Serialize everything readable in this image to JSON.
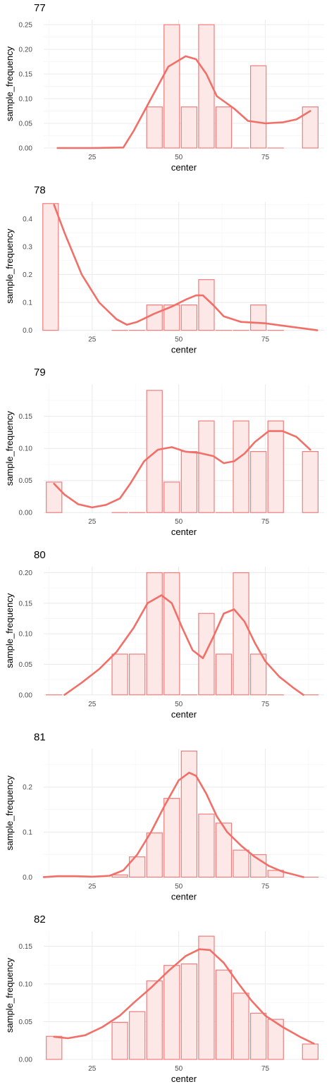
{
  "style": {
    "bar_fill": "#fde8e8",
    "bar_stroke": "#f27c7c",
    "line_color": "#f26f68",
    "grid_major": "#ebebeb",
    "grid_minor": "#f5f5f5",
    "text_color": "#4d4d4d"
  },
  "chart_data": [
    {
      "type": "bar",
      "title": "77",
      "xlabel": "center",
      "ylabel": "sample_frequency",
      "xlim": [
        11,
        92
      ],
      "ylim": [
        0,
        0.26
      ],
      "xticks": [
        "25",
        "50",
        "75"
      ],
      "yticks": [
        "0.00",
        "0.05",
        "0.10",
        "0.15",
        "0.20",
        "0.25"
      ],
      "grid": true,
      "bars": [
        {
          "x": 43,
          "value": 0.0833
        },
        {
          "x": 48,
          "value": 0.25
        },
        {
          "x": 53,
          "value": 0.0833
        },
        {
          "x": 58,
          "value": 0.25
        },
        {
          "x": 63,
          "value": 0.0833
        },
        {
          "x": 68,
          "value": 0
        },
        {
          "x": 73,
          "value": 0.1667
        },
        {
          "x": 78,
          "value": 0
        },
        {
          "x": 88,
          "value": 0.0833
        }
      ],
      "density": [
        [
          15,
          0
        ],
        [
          25,
          0
        ],
        [
          34,
          0.001
        ],
        [
          37,
          0.035
        ],
        [
          42,
          0.1
        ],
        [
          47,
          0.165
        ],
        [
          52,
          0.186
        ],
        [
          55,
          0.18
        ],
        [
          58,
          0.15
        ],
        [
          61,
          0.105
        ],
        [
          66,
          0.08
        ],
        [
          70,
          0.055
        ],
        [
          75,
          0.05
        ],
        [
          80,
          0.052
        ],
        [
          84,
          0.058
        ],
        [
          88,
          0.075
        ]
      ]
    },
    {
      "type": "bar",
      "title": "78",
      "xlabel": "center",
      "ylabel": "sample_frequency",
      "xlim": [
        11,
        92
      ],
      "ylim": [
        0,
        0.46
      ],
      "xticks": [
        "25",
        "50",
        "75"
      ],
      "yticks": [
        "0.0",
        "0.1",
        "0.2",
        "0.3",
        "0.4"
      ],
      "grid": true,
      "bars": [
        {
          "x": 13,
          "value": 0.4545
        },
        {
          "x": 33,
          "value": 0
        },
        {
          "x": 38,
          "value": 0
        },
        {
          "x": 43,
          "value": 0.0909
        },
        {
          "x": 48,
          "value": 0.0909
        },
        {
          "x": 53,
          "value": 0.0909
        },
        {
          "x": 58,
          "value": 0.1818
        },
        {
          "x": 63,
          "value": 0
        },
        {
          "x": 68,
          "value": 0
        },
        {
          "x": 73,
          "value": 0.0909
        },
        {
          "x": 78,
          "value": 0
        }
      ],
      "density": [
        [
          14,
          0.45
        ],
        [
          17,
          0.35
        ],
        [
          22,
          0.2
        ],
        [
          27,
          0.1
        ],
        [
          32,
          0.04
        ],
        [
          35,
          0.02
        ],
        [
          38,
          0.03
        ],
        [
          43,
          0.06
        ],
        [
          48,
          0.085
        ],
        [
          52,
          0.11
        ],
        [
          55,
          0.125
        ],
        [
          57,
          0.125
        ],
        [
          60,
          0.09
        ],
        [
          63,
          0.05
        ],
        [
          68,
          0.03
        ],
        [
          75,
          0.025
        ],
        [
          81,
          0.015
        ],
        [
          87,
          0.005
        ],
        [
          90,
          0.0
        ]
      ]
    },
    {
      "type": "bar",
      "title": "79",
      "xlabel": "center",
      "ylabel": "sample_frequency",
      "xlim": [
        11,
        92
      ],
      "ylim": [
        0,
        0.2
      ],
      "xticks": [
        "25",
        "50",
        "75"
      ],
      "yticks": [
        "0.00",
        "0.05",
        "0.10",
        "0.15"
      ],
      "grid": true,
      "bars": [
        {
          "x": 14,
          "value": 0.0476
        },
        {
          "x": 33,
          "value": 0
        },
        {
          "x": 38,
          "value": 0
        },
        {
          "x": 43,
          "value": 0.1905
        },
        {
          "x": 48,
          "value": 0.0476
        },
        {
          "x": 53,
          "value": 0.0952
        },
        {
          "x": 58,
          "value": 0.1429
        },
        {
          "x": 63,
          "value": 0
        },
        {
          "x": 68,
          "value": 0.1429
        },
        {
          "x": 73,
          "value": 0.0952
        },
        {
          "x": 78,
          "value": 0.1429
        },
        {
          "x": 88,
          "value": 0.0952
        }
      ],
      "density": [
        [
          14,
          0.045
        ],
        [
          17,
          0.028
        ],
        [
          21,
          0.013
        ],
        [
          25,
          0.008
        ],
        [
          29,
          0.012
        ],
        [
          33,
          0.022
        ],
        [
          36,
          0.045
        ],
        [
          40,
          0.08
        ],
        [
          44,
          0.098
        ],
        [
          48,
          0.102
        ],
        [
          52,
          0.095
        ],
        [
          56,
          0.093
        ],
        [
          60,
          0.088
        ],
        [
          63,
          0.077
        ],
        [
          66,
          0.08
        ],
        [
          69,
          0.092
        ],
        [
          72,
          0.11
        ],
        [
          76,
          0.127
        ],
        [
          80,
          0.127
        ],
        [
          84,
          0.118
        ],
        [
          88,
          0.098
        ]
      ]
    },
    {
      "type": "bar",
      "title": "80",
      "xlabel": "center",
      "ylabel": "sample_frequency",
      "xlim": [
        11,
        92
      ],
      "ylim": [
        0,
        0.21
      ],
      "xticks": [
        "25",
        "50",
        "75"
      ],
      "yticks": [
        "0.00",
        "0.05",
        "0.10",
        "0.15",
        "0.20"
      ],
      "grid": true,
      "bars": [
        {
          "x": 14,
          "value": 0
        },
        {
          "x": 33,
          "value": 0.0667
        },
        {
          "x": 38,
          "value": 0.0667
        },
        {
          "x": 43,
          "value": 0.2
        },
        {
          "x": 48,
          "value": 0.2
        },
        {
          "x": 53,
          "value": 0
        },
        {
          "x": 58,
          "value": 0.1333
        },
        {
          "x": 63,
          "value": 0.0667
        },
        {
          "x": 68,
          "value": 0.2
        },
        {
          "x": 73,
          "value": 0.0667
        },
        {
          "x": 78,
          "value": 0
        },
        {
          "x": 88,
          "value": 0
        }
      ],
      "density": [
        [
          17,
          0.0
        ],
        [
          22,
          0.02
        ],
        [
          27,
          0.042
        ],
        [
          32,
          0.07
        ],
        [
          37,
          0.11
        ],
        [
          41,
          0.15
        ],
        [
          45,
          0.163
        ],
        [
          48,
          0.15
        ],
        [
          51,
          0.11
        ],
        [
          54,
          0.073
        ],
        [
          57,
          0.06
        ],
        [
          60,
          0.095
        ],
        [
          63,
          0.133
        ],
        [
          66,
          0.14
        ],
        [
          69,
          0.12
        ],
        [
          72,
          0.085
        ],
        [
          75,
          0.055
        ],
        [
          79,
          0.03
        ],
        [
          83,
          0.012
        ],
        [
          86,
          0.0
        ]
      ]
    },
    {
      "type": "bar",
      "title": "81",
      "xlabel": "center",
      "ylabel": "sample_frequency",
      "xlim": [
        11,
        92
      ],
      "ylim": [
        0,
        0.285
      ],
      "xticks": [
        "25",
        "50",
        "75"
      ],
      "yticks": [
        "0.0",
        "0.1",
        "0.2"
      ],
      "grid": true,
      "bars": [
        {
          "x": 33,
          "value": 0.005
        },
        {
          "x": 38,
          "value": 0.045
        },
        {
          "x": 43,
          "value": 0.098
        },
        {
          "x": 48,
          "value": 0.175
        },
        {
          "x": 53,
          "value": 0.28
        },
        {
          "x": 58,
          "value": 0.14
        },
        {
          "x": 63,
          "value": 0.12
        },
        {
          "x": 68,
          "value": 0.06
        },
        {
          "x": 73,
          "value": 0.05
        },
        {
          "x": 78,
          "value": 0.015
        },
        {
          "x": 88,
          "value": 0
        }
      ],
      "density": [
        [
          11,
          0.0
        ],
        [
          15,
          0.002
        ],
        [
          20,
          0.002
        ],
        [
          25,
          0.001
        ],
        [
          30,
          0.003
        ],
        [
          34,
          0.015
        ],
        [
          38,
          0.05
        ],
        [
          42,
          0.1
        ],
        [
          46,
          0.16
        ],
        [
          50,
          0.215
        ],
        [
          53,
          0.232
        ],
        [
          55,
          0.225
        ],
        [
          58,
          0.185
        ],
        [
          61,
          0.135
        ],
        [
          64,
          0.1
        ],
        [
          68,
          0.07
        ],
        [
          72,
          0.045
        ],
        [
          76,
          0.025
        ],
        [
          80,
          0.012
        ],
        [
          84,
          0.004
        ],
        [
          86,
          0.0
        ]
      ]
    },
    {
      "type": "bar",
      "title": "82",
      "xlabel": "center",
      "ylabel": "sample_frequency",
      "xlim": [
        11,
        92
      ],
      "ylim": [
        0,
        0.17
      ],
      "xticks": [
        "25",
        "50",
        "75"
      ],
      "yticks": [
        "0.00",
        "0.05",
        "0.10",
        "0.15"
      ],
      "grid": true,
      "bars": [
        {
          "x": 14,
          "value": 0.0306
        },
        {
          "x": 33,
          "value": 0.049
        },
        {
          "x": 38,
          "value": 0.0633
        },
        {
          "x": 43,
          "value": 0.104
        },
        {
          "x": 48,
          "value": 0.1245
        },
        {
          "x": 53,
          "value": 0.1265
        },
        {
          "x": 58,
          "value": 0.1633
        },
        {
          "x": 63,
          "value": 0.1184
        },
        {
          "x": 68,
          "value": 0.0878
        },
        {
          "x": 73,
          "value": 0.0612
        },
        {
          "x": 78,
          "value": 0.0531
        },
        {
          "x": 88,
          "value": 0.0204
        }
      ],
      "density": [
        [
          14,
          0.03
        ],
        [
          18,
          0.028
        ],
        [
          23,
          0.032
        ],
        [
          28,
          0.043
        ],
        [
          33,
          0.058
        ],
        [
          37,
          0.075
        ],
        [
          42,
          0.095
        ],
        [
          47,
          0.117
        ],
        [
          52,
          0.137
        ],
        [
          56,
          0.146
        ],
        [
          59,
          0.145
        ],
        [
          63,
          0.128
        ],
        [
          67,
          0.102
        ],
        [
          71,
          0.078
        ],
        [
          75,
          0.058
        ],
        [
          80,
          0.043
        ],
        [
          85,
          0.03
        ],
        [
          89,
          0.021
        ]
      ]
    }
  ]
}
